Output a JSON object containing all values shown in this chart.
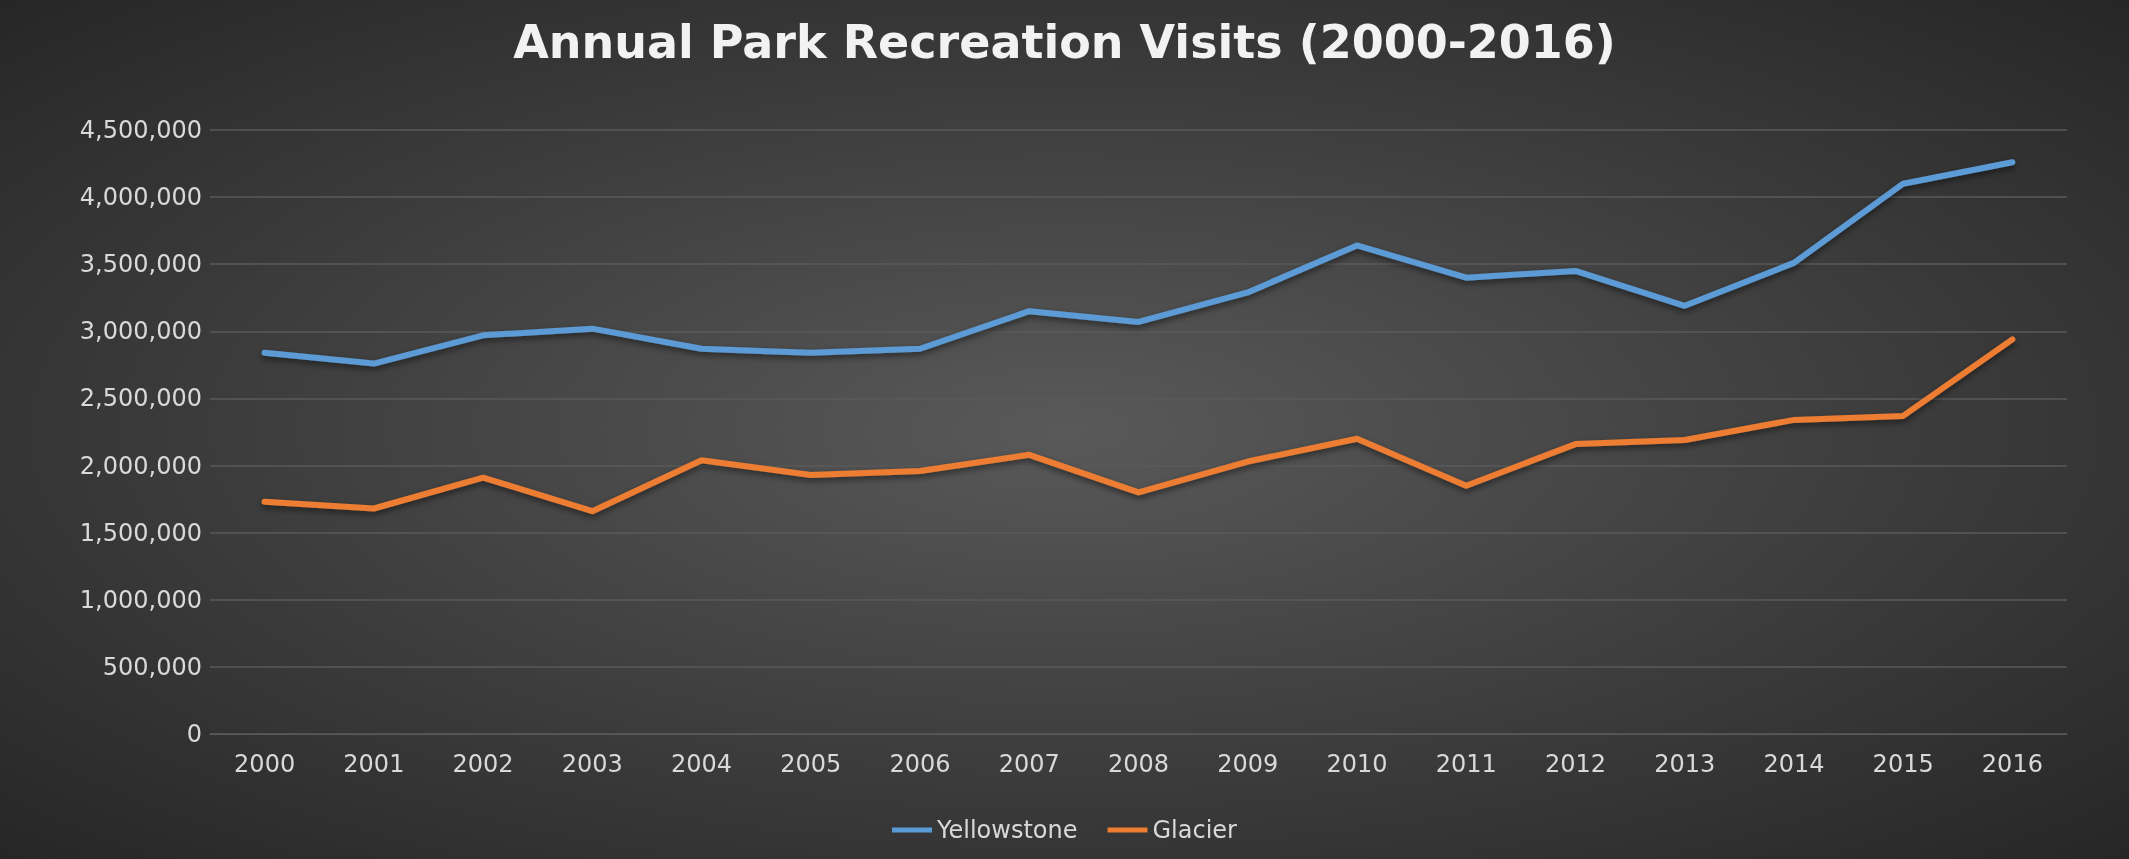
{
  "chart_data": {
    "type": "line",
    "title": "Annual Park Recreation Visits (2000-2016)",
    "categories": [
      "2000",
      "2001",
      "2002",
      "2003",
      "2004",
      "2005",
      "2006",
      "2007",
      "2008",
      "2009",
      "2010",
      "2011",
      "2012",
      "2013",
      "2014",
      "2015",
      "2016"
    ],
    "series": [
      {
        "name": "Yellowstone",
        "color": "#5b9bd5",
        "values": [
          2840000,
          2760000,
          2970000,
          3020000,
          2870000,
          2840000,
          2870000,
          3150000,
          3070000,
          3290000,
          3640000,
          3400000,
          3450000,
          3190000,
          3510000,
          4100000,
          4260000
        ]
      },
      {
        "name": "Glacier",
        "color": "#ed7d31",
        "values": [
          1730000,
          1680000,
          1910000,
          1660000,
          2040000,
          1930000,
          1960000,
          2080000,
          1800000,
          2030000,
          2200000,
          1850000,
          2160000,
          2190000,
          2340000,
          2370000,
          2940000
        ]
      }
    ],
    "ylim": [
      0,
      4500000
    ],
    "yticks": [
      0,
      {
        "value": 500000,
        "label": "500,000"
      },
      {
        "value": 1000000,
        "label": "1,000,000"
      },
      {
        "value": 1500000,
        "label": "1,500,000"
      },
      {
        "value": 2000000,
        "label": "2,000,000"
      },
      {
        "value": 2500000,
        "label": "2,500,000"
      },
      {
        "value": 3000000,
        "label": "3,000,000"
      },
      {
        "value": 3500000,
        "label": "3,500,000"
      },
      {
        "value": 4000000,
        "label": "4,000,000"
      },
      {
        "value": 4500000,
        "label": "4,500,000"
      }
    ],
    "grid": "y",
    "legend": "bottom",
    "marker": "none",
    "line_style": "solid"
  }
}
